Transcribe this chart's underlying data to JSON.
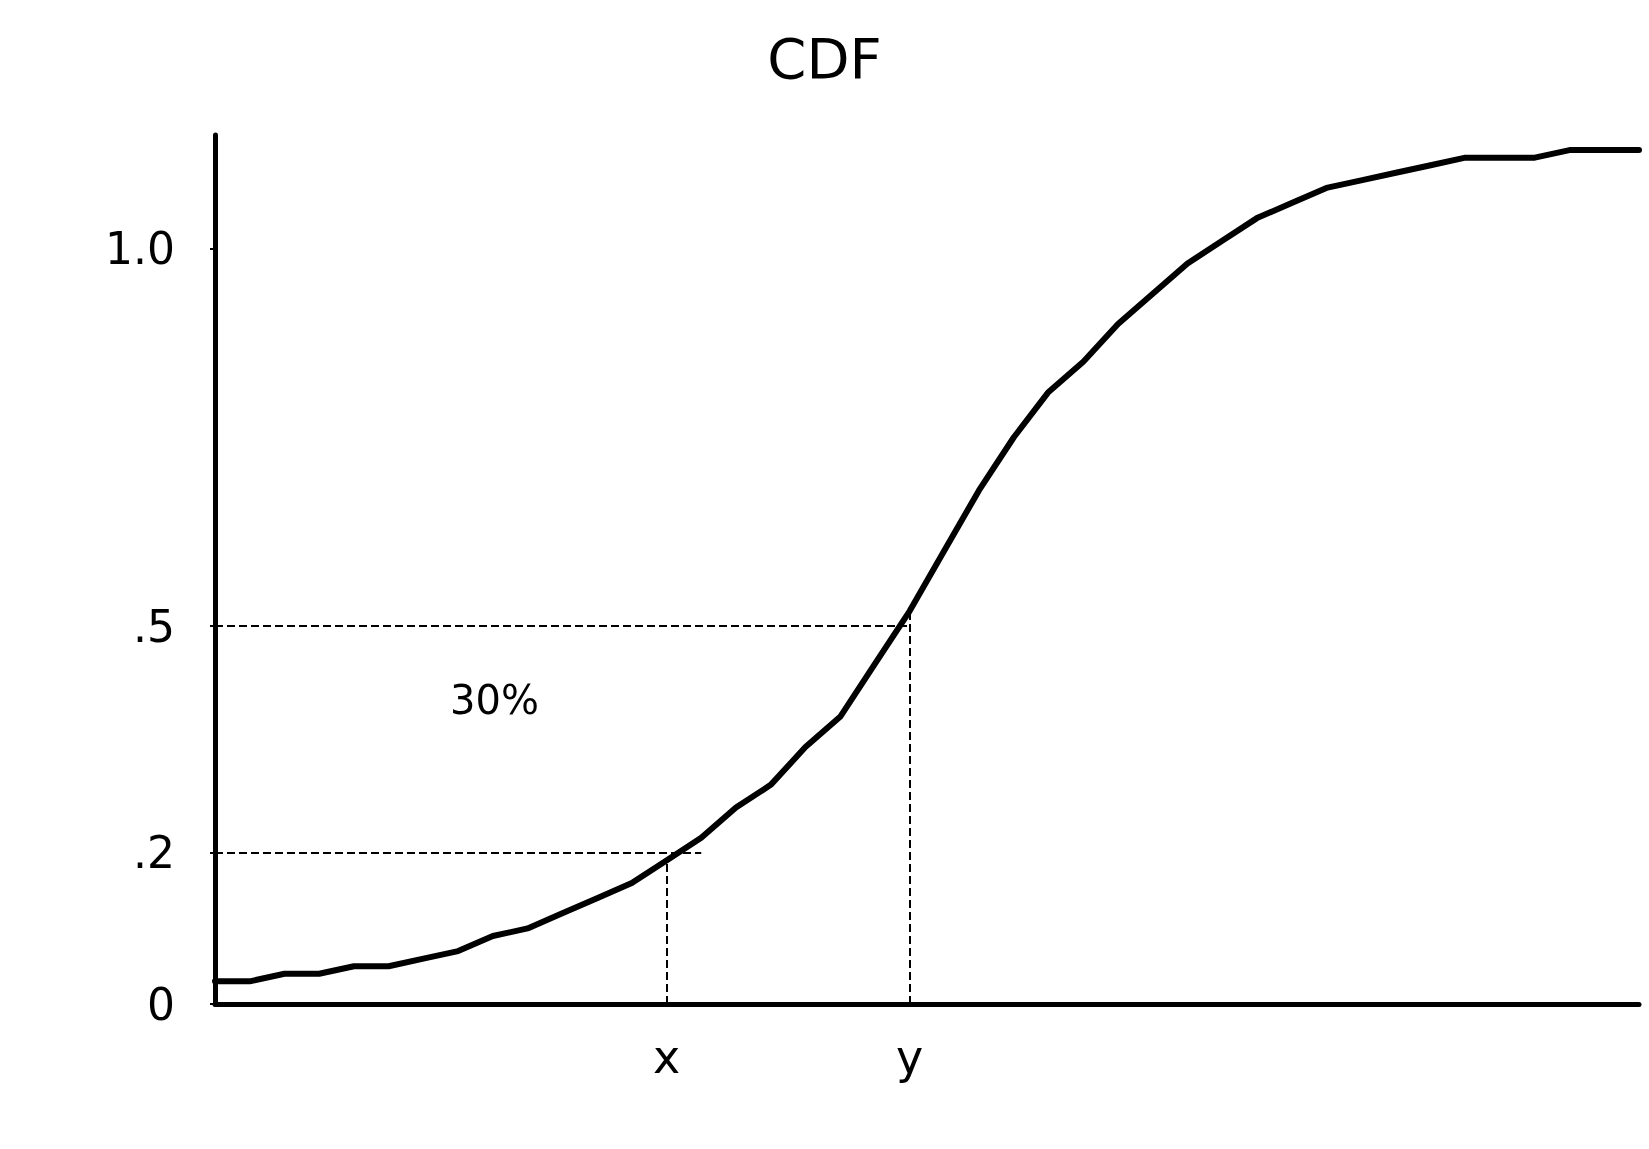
{
  "chart_data": {
    "type": "line",
    "title": "CDF",
    "categories": [
      null,
      null,
      null,
      null,
      null,
      null,
      null,
      null,
      null,
      null,
      null,
      null,
      null,
      "x",
      null,
      null,
      null,
      null,
      null,
      null,
      "y",
      null,
      null,
      null,
      null,
      null,
      null,
      null,
      null,
      null,
      null,
      null,
      null,
      null,
      null,
      null,
      null,
      null,
      null,
      null,
      null,
      null
    ],
    "series": [
      {
        "color": "#000000",
        "values": [
          0.03,
          0.03,
          0.04,
          0.04,
          0.05,
          0.05,
          0.06,
          0.07,
          0.09,
          0.1,
          0.12,
          0.14,
          0.16,
          0.19,
          0.22,
          0.26,
          0.29,
          0.34,
          0.38,
          0.45,
          0.52,
          0.6,
          0.68,
          0.75,
          0.81,
          0.85,
          0.9,
          0.94,
          0.98,
          1.01,
          1.04,
          1.06,
          1.08,
          1.09,
          1.1,
          1.11,
          1.12,
          1.12,
          1.12,
          1.13,
          1.13,
          1.13
        ]
      }
    ],
    "ylim": [
      0,
      1.15
    ],
    "yticks": [
      0,
      {
        "value": 0.2,
        "label": ".2"
      },
      {
        "value": 0.5,
        "label": ".5"
      },
      {
        "value": 1,
        "label": "1.0"
      }
    ],
    "ref_lines": [
      {
        "axis": "y",
        "value": 0.5,
        "line_style": "dashed"
      },
      {
        "axis": "y",
        "value": 0.2,
        "line_style": "dashed"
      },
      {
        "axis": "x",
        "value": "x",
        "line_style": "dashed"
      },
      {
        "axis": "x",
        "value": "y",
        "line_style": "dashed"
      }
    ],
    "annotations": [
      "30%"
    ],
    "grid": false,
    "marker": "none",
    "line_style": "solid"
  }
}
